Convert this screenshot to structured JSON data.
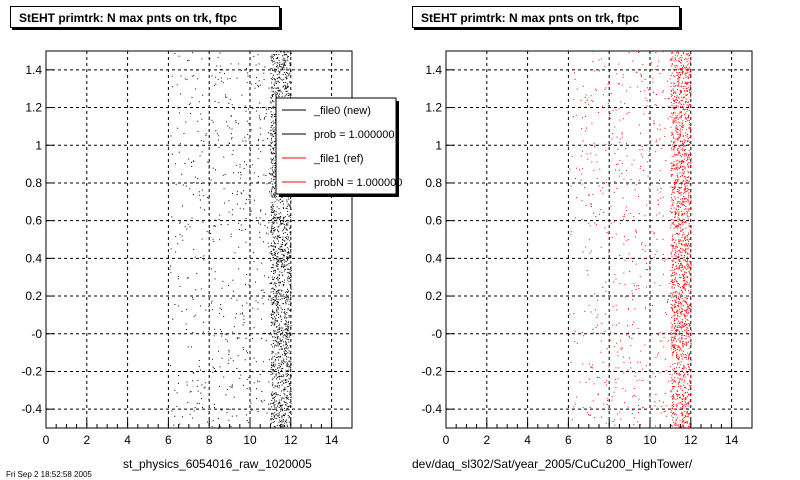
{
  "chart_data": [
    {
      "type": "scatter",
      "title": "StEHT primtrk: N max pnts on trk, ftpc",
      "xlabel": "st_physics_6054016_raw_1020005",
      "ylabel": "",
      "xlim": [
        0,
        15
      ],
      "ylim": [
        -0.5,
        1.5
      ],
      "x_ticks": [
        "0",
        "2",
        "4",
        "6",
        "8",
        "10",
        "12",
        "14"
      ],
      "y_ticks": [
        "-0.4",
        "-0.2",
        "-0",
        "0.2",
        "0.4",
        "0.6",
        "0.8",
        "1",
        "1.2",
        "1.4"
      ],
      "grid": true,
      "legend_position": "top-right",
      "legend": [
        {
          "label": "_file0 (new)",
          "color": "#000000"
        },
        {
          "label": "prob = 1.000000",
          "color": "#000000"
        },
        {
          "label": "_file1 (ref)",
          "color": "#ff0000"
        },
        {
          "label": "probN = 1.000000",
          "color": "#ff0000"
        }
      ],
      "marker_color": "#000000",
      "series": [
        {
          "values": []
        }
      ],
      "x_distribution": {
        "sparse_range": [
          6,
          11
        ],
        "dense_range": [
          11,
          12
        ]
      }
    },
    {
      "type": "scatter",
      "title": "StEHT primtrk: N max pnts on trk, ftpc",
      "xlabel": "dev/daq_sl302/Sat/year_2005/CuCu200_HighTower/",
      "ylabel": "",
      "xlim": [
        0,
        15
      ],
      "ylim": [
        -0.5,
        1.5
      ],
      "x_ticks": [
        "0",
        "2",
        "4",
        "6",
        "8",
        "10",
        "12",
        "14"
      ],
      "y_ticks": [
        "-0.4",
        "-0.2",
        "-0",
        "0.2",
        "0.4",
        "0.6",
        "0.8",
        "1",
        "1.2",
        "1.4"
      ],
      "grid": true,
      "marker_color": "#ff0000",
      "series": [
        {
          "values": []
        }
      ],
      "x_distribution": {
        "sparse_range": [
          6,
          11
        ],
        "dense_range": [
          11,
          12
        ]
      }
    }
  ],
  "footer_stamp": "Fri Sep  2 18:52:58 2005"
}
